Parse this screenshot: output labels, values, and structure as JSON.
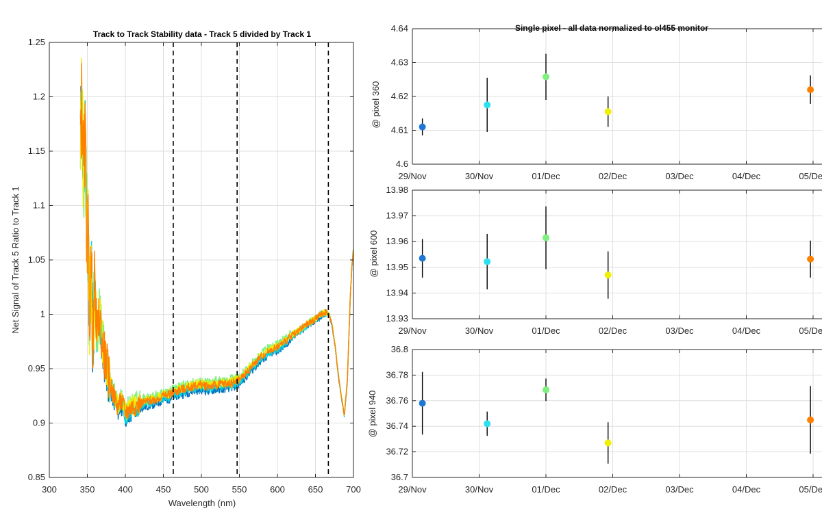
{
  "chart_data": [
    {
      "type": "line",
      "title": "Track to Track Stability data - Track 5 divided by Track 1",
      "xlabel": "Wavelength (nm)",
      "ylabel": "Net Signal of Track 5 Ratio to Track 1",
      "xlim": [
        300,
        700
      ],
      "ylim": [
        0.85,
        1.25
      ],
      "xticks": [
        300,
        350,
        400,
        450,
        500,
        550,
        600,
        650,
        700
      ],
      "yticks": [
        0.85,
        0.9,
        0.95,
        1.0,
        1.05,
        1.1,
        1.15,
        1.2,
        1.25
      ],
      "ytick_labels": [
        "0.85",
        "0.9",
        "0.95",
        "1",
        "1.05",
        "1.1",
        "1.15",
        "1.2",
        "1.25"
      ],
      "grid": true,
      "vlines": [
        463,
        547,
        667
      ],
      "series": [
        {
          "color": "#0072bd",
          "offset": -0.004
        },
        {
          "color": "#00d4e6",
          "offset": -0.002
        },
        {
          "color": "#7df07d",
          "offset": 0.003
        },
        {
          "color": "#f0f000",
          "offset": 0.001
        },
        {
          "color": "#ff8000",
          "offset": 0.0
        }
      ],
      "x": [
        341,
        343,
        345,
        347,
        349,
        351,
        353,
        355,
        357,
        360,
        363,
        366,
        370,
        375,
        380,
        385,
        390,
        395,
        400,
        410,
        420,
        430,
        440,
        450,
        460,
        470,
        480,
        490,
        500,
        510,
        520,
        530,
        540,
        550,
        560,
        570,
        580,
        590,
        600,
        610,
        620,
        630,
        640,
        650,
        660,
        665,
        668,
        672,
        676,
        680,
        684,
        688,
        692,
        694,
        696,
        698,
        700
      ],
      "y": [
        1.17,
        1.2,
        1.12,
        1.16,
        1.09,
        1.07,
        1.0,
        1.04,
        0.99,
        1.02,
        0.98,
        1.0,
        0.97,
        0.955,
        0.935,
        0.925,
        0.915,
        0.92,
        0.91,
        0.915,
        0.918,
        0.92,
        0.922,
        0.925,
        0.927,
        0.93,
        0.932,
        0.934,
        0.935,
        0.934,
        0.935,
        0.936,
        0.937,
        0.94,
        0.947,
        0.955,
        0.962,
        0.967,
        0.97,
        0.975,
        0.981,
        0.986,
        0.991,
        0.996,
        1.001,
        1.002,
        1.0,
        0.99,
        0.97,
        0.945,
        0.925,
        0.907,
        0.94,
        0.98,
        1.02,
        1.045,
        1.06
      ]
    },
    {
      "type": "scatter",
      "title": "Single pixel - all data normalized to ol455 monitor",
      "ylabel": "@ pixel 360",
      "xticks": [
        "29/Nov",
        "30/Nov",
        "01/Dec",
        "02/Dec",
        "03/Dec",
        "04/Dec",
        "05/Dec"
      ],
      "xlim": [
        0,
        6
      ],
      "ylim": [
        4.6,
        4.64
      ],
      "yticks": [
        4.6,
        4.61,
        4.62,
        4.63,
        4.64
      ],
      "ytick_labels": [
        "4.6",
        "4.61",
        "4.62",
        "4.63",
        "4.64"
      ],
      "grid": true,
      "points": [
        {
          "x": 0.15,
          "y": 4.611,
          "err": 0.0025,
          "color": "#1f77d4"
        },
        {
          "x": 1.12,
          "y": 4.6175,
          "err": 0.008,
          "color": "#2de0f0"
        },
        {
          "x": 2.0,
          "y": 4.6258,
          "err": 0.0068,
          "color": "#7df07d"
        },
        {
          "x": 2.93,
          "y": 4.6155,
          "err": 0.0045,
          "color": "#f0f000"
        },
        {
          "x": 5.96,
          "y": 4.622,
          "err": 0.0042,
          "color": "#ff8000"
        }
      ]
    },
    {
      "type": "scatter",
      "ylabel": "@ pixel 600",
      "xticks": [
        "29/Nov",
        "30/Nov",
        "01/Dec",
        "02/Dec",
        "03/Dec",
        "04/Dec",
        "05/Dec"
      ],
      "xlim": [
        0,
        6
      ],
      "ylim": [
        13.93,
        13.98
      ],
      "yticks": [
        13.93,
        13.94,
        13.95,
        13.96,
        13.97,
        13.98
      ],
      "ytick_labels": [
        "13.93",
        "13.94",
        "13.95",
        "13.96",
        "13.97",
        "13.98"
      ],
      "grid": true,
      "points": [
        {
          "x": 0.15,
          "y": 13.9535,
          "err": 0.0075,
          "color": "#1f77d4"
        },
        {
          "x": 1.12,
          "y": 13.9522,
          "err": 0.0108,
          "color": "#2de0f0"
        },
        {
          "x": 2.0,
          "y": 13.9615,
          "err": 0.0122,
          "color": "#7df07d"
        },
        {
          "x": 2.93,
          "y": 13.947,
          "err": 0.0092,
          "color": "#f0f000"
        },
        {
          "x": 5.96,
          "y": 13.9532,
          "err": 0.0072,
          "color": "#ff8000"
        }
      ]
    },
    {
      "type": "scatter",
      "ylabel": "@ pixel 940",
      "xticks": [
        "29/Nov",
        "30/Nov",
        "01/Dec",
        "02/Dec",
        "03/Dec",
        "04/Dec",
        "05/Dec"
      ],
      "xlim": [
        0,
        6
      ],
      "ylim": [
        36.7,
        36.8
      ],
      "yticks": [
        36.7,
        36.72,
        36.74,
        36.76,
        36.78,
        36.8
      ],
      "ytick_labels": [
        "36.7",
        "36.72",
        "36.74",
        "36.76",
        "36.78",
        "36.8"
      ],
      "grid": true,
      "points": [
        {
          "x": 0.15,
          "y": 36.758,
          "err": 0.0245,
          "color": "#1f77d4"
        },
        {
          "x": 1.12,
          "y": 36.742,
          "err": 0.0095,
          "color": "#2de0f0"
        },
        {
          "x": 2.0,
          "y": 36.7685,
          "err": 0.0088,
          "color": "#7df07d"
        },
        {
          "x": 2.93,
          "y": 36.727,
          "err": 0.0162,
          "color": "#f0f000"
        },
        {
          "x": 5.96,
          "y": 36.745,
          "err": 0.0265,
          "color": "#ff8000"
        }
      ]
    }
  ]
}
